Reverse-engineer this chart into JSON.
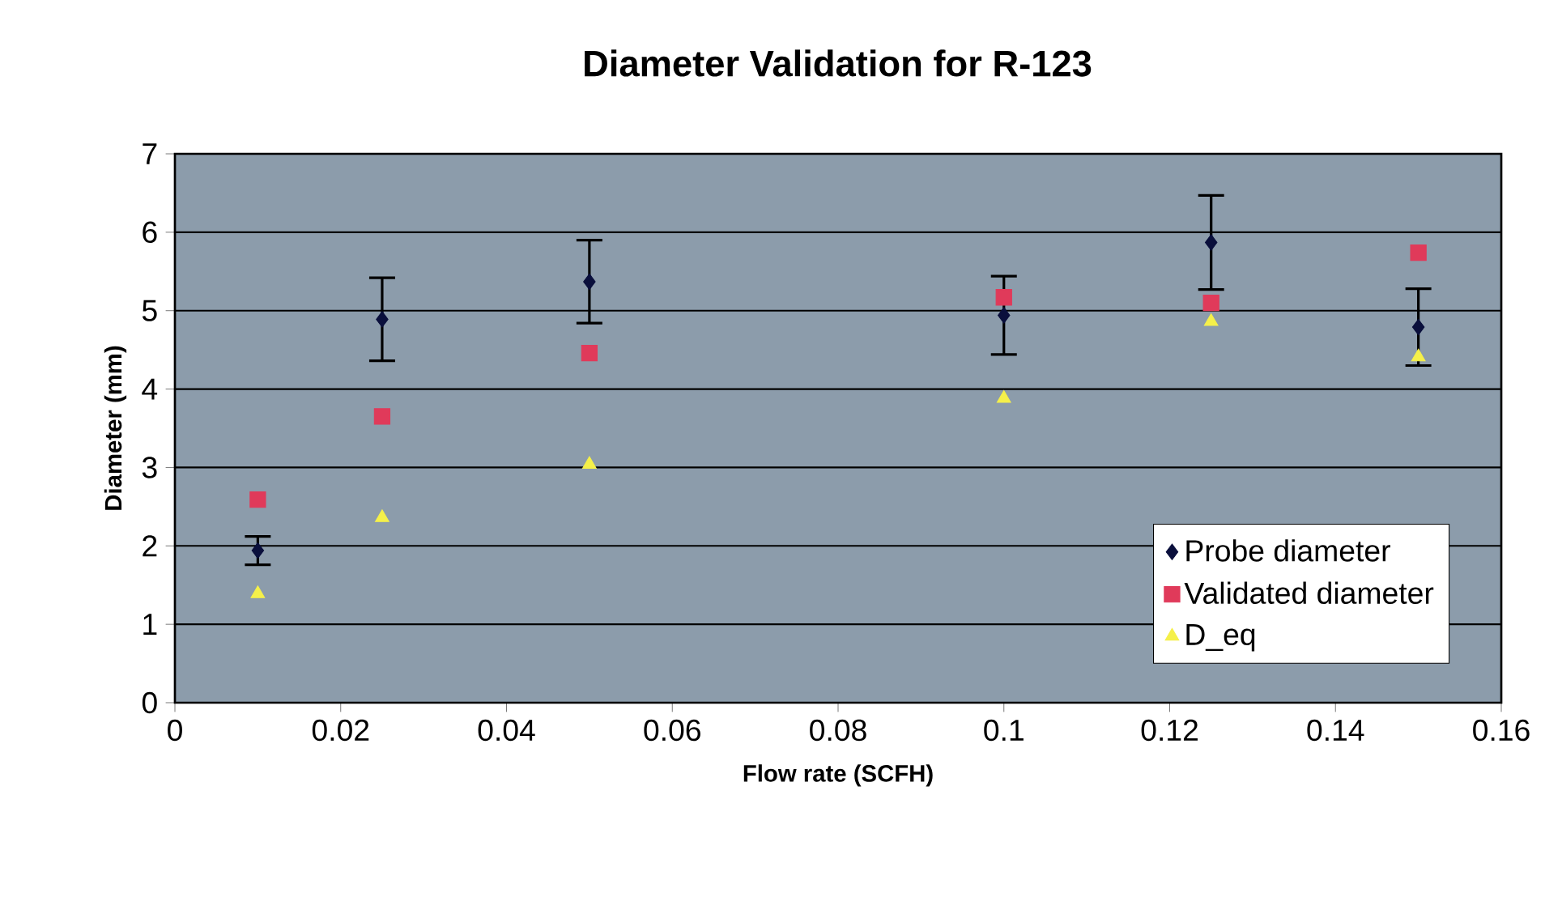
{
  "chart_data": {
    "type": "scatter",
    "title": "Diameter Validation for R-123",
    "xlabel": "Flow rate (SCFH)",
    "ylabel": "Diameter (mm)",
    "x": [
      0.01,
      0.025,
      0.05,
      0.1,
      0.125,
      0.15
    ],
    "series": [
      {
        "name": "Probe diameter",
        "color": "#0a0f3c",
        "marker": "diamond",
        "values": [
          1.94,
          4.89,
          5.37,
          4.94,
          5.87,
          4.79
        ],
        "errors": [
          0.18,
          0.53,
          0.53,
          0.5,
          0.6,
          0.49
        ]
      },
      {
        "name": "Validated diameter",
        "color": "#e03a5a",
        "marker": "square",
        "values": [
          2.59,
          3.65,
          4.46,
          5.17,
          5.1,
          5.74
        ]
      },
      {
        "name": "D_eq",
        "color": "#f5f04a",
        "marker": "triangle",
        "values": [
          1.39,
          2.36,
          3.04,
          3.88,
          4.86,
          4.41
        ]
      }
    ],
    "xlim": [
      0,
      0.16
    ],
    "xticks": [
      0,
      0.02,
      0.04,
      0.06,
      0.08,
      0.1,
      0.12,
      0.14,
      0.16
    ],
    "ylim": [
      0,
      7
    ],
    "yticks": [
      0,
      1,
      2,
      3,
      4,
      5,
      6,
      7
    ],
    "grid": "y",
    "legend": "bottom right"
  }
}
